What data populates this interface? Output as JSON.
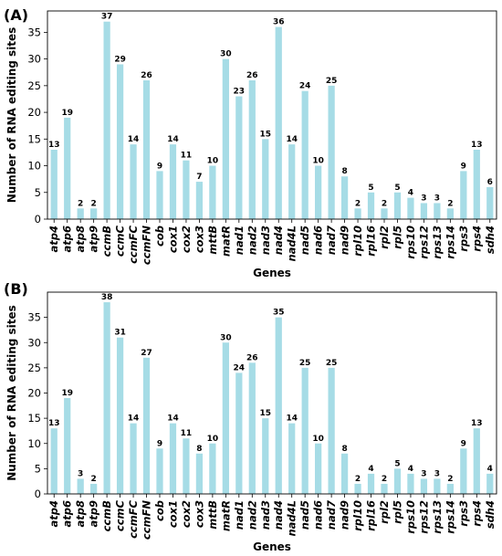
{
  "chart_data": [
    {
      "type": "bar",
      "panel_label": "(A)",
      "categories": [
        "atp4",
        "atp6",
        "atp8",
        "atp9",
        "ccmB",
        "ccmC",
        "ccmFC",
        "ccmFN",
        "cob",
        "cox1",
        "cox2",
        "cox3",
        "mttB",
        "matR",
        "nad1",
        "nad2",
        "nad3",
        "nad4",
        "nad4L",
        "nad5",
        "nad6",
        "nad7",
        "nad9",
        "rpl10",
        "rpl16",
        "rpl2",
        "rpl5",
        "rps10",
        "rps12",
        "rps13",
        "rps14",
        "rps3",
        "rps4",
        "sdh4"
      ],
      "values": [
        13,
        19,
        2,
        2,
        37,
        29,
        14,
        26,
        9,
        14,
        11,
        7,
        10,
        30,
        23,
        26,
        15,
        36,
        14,
        24,
        10,
        25,
        8,
        2,
        5,
        2,
        5,
        4,
        3,
        3,
        2,
        9,
        13,
        6
      ],
      "xlabel": "Genes",
      "ylabel": "Number of RNA editing sites",
      "ylim": [
        0,
        39
      ],
      "yticks": [
        0,
        5,
        10,
        15,
        20,
        25,
        30,
        35
      ],
      "bar_color": "#a6dce6",
      "grid": false
    },
    {
      "type": "bar",
      "panel_label": "(B)",
      "categories": [
        "atp4",
        "atp6",
        "atp8",
        "atp9",
        "ccmB",
        "ccmC",
        "ccmFC",
        "ccmFN",
        "cob",
        "cox1",
        "cox2",
        "cox3",
        "mttB",
        "matR",
        "nad1",
        "nad2",
        "nad3",
        "nad4",
        "nad4L",
        "nad5",
        "nad6",
        "nad7",
        "nad9",
        "rpl10",
        "rpl16",
        "rpl2",
        "rpl5",
        "rps10",
        "rps12",
        "rps13",
        "rps14",
        "rps3",
        "rps4",
        "sdh4"
      ],
      "values": [
        13,
        19,
        3,
        2,
        38,
        31,
        14,
        27,
        9,
        14,
        11,
        8,
        10,
        30,
        24,
        26,
        15,
        35,
        14,
        25,
        10,
        25,
        8,
        2,
        4,
        2,
        5,
        4,
        3,
        3,
        2,
        9,
        13,
        4
      ],
      "xlabel": "Genes",
      "ylabel": "Number of RNA editing sites",
      "ylim": [
        0,
        40
      ],
      "yticks": [
        0,
        5,
        10,
        15,
        20,
        25,
        30,
        35
      ],
      "bar_color": "#a6dce6",
      "grid": false
    }
  ]
}
